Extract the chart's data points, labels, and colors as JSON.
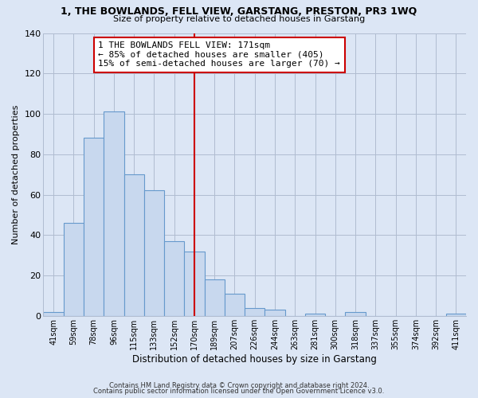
{
  "title": "1, THE BOWLANDS, FELL VIEW, GARSTANG, PRESTON, PR3 1WQ",
  "subtitle": "Size of property relative to detached houses in Garstang",
  "xlabel": "Distribution of detached houses by size in Garstang",
  "ylabel": "Number of detached properties",
  "categories": [
    "41sqm",
    "59sqm",
    "78sqm",
    "96sqm",
    "115sqm",
    "133sqm",
    "152sqm",
    "170sqm",
    "189sqm",
    "207sqm",
    "226sqm",
    "244sqm",
    "263sqm",
    "281sqm",
    "300sqm",
    "318sqm",
    "337sqm",
    "355sqm",
    "374sqm",
    "392sqm",
    "411sqm"
  ],
  "values": [
    2,
    46,
    88,
    101,
    70,
    62,
    37,
    32,
    18,
    11,
    4,
    3,
    0,
    1,
    0,
    2,
    0,
    0,
    0,
    0,
    1
  ],
  "bar_color": "#c8d8ee",
  "bar_edge_color": "#6699cc",
  "vline_x_index": 7,
  "vline_color": "#cc0000",
  "annotation_text": "1 THE BOWLANDS FELL VIEW: 171sqm\n← 85% of detached houses are smaller (405)\n15% of semi-detached houses are larger (70) →",
  "annotation_box_color": "#ffffff",
  "annotation_box_edgecolor": "#cc0000",
  "ylim": [
    0,
    140
  ],
  "yticks": [
    0,
    20,
    40,
    60,
    80,
    100,
    120,
    140
  ],
  "footer_line1": "Contains HM Land Registry data © Crown copyright and database right 2024.",
  "footer_line2": "Contains public sector information licensed under the Open Government Licence v3.0.",
  "bg_color": "#dce6f5",
  "plot_bg_color": "#dce6f5"
}
